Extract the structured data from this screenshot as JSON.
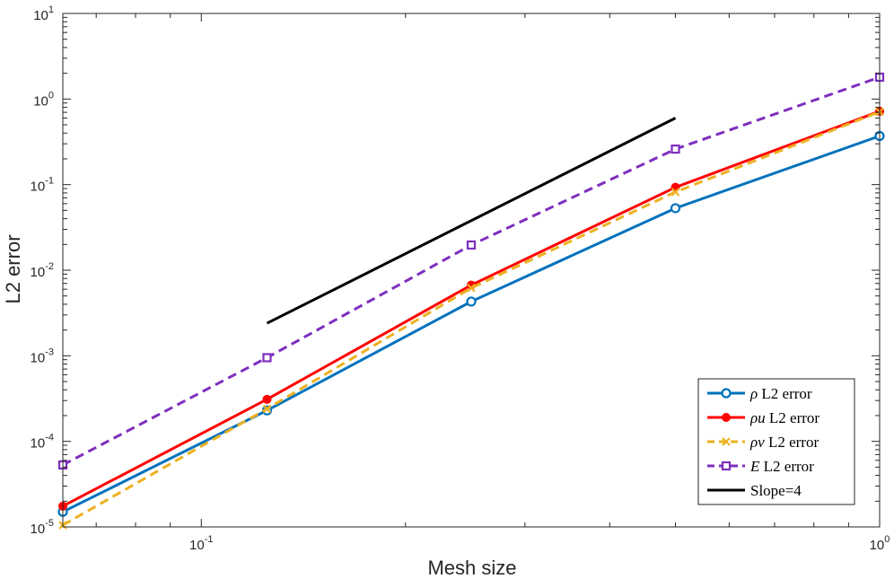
{
  "chart_data": {
    "type": "line",
    "scale": {
      "x": "log",
      "y": "log"
    },
    "xlabel": "Mesh size",
    "ylabel": "L2 error",
    "xlim": [
      0.0625,
      1
    ],
    "ylim": [
      1e-05,
      10
    ],
    "x_ticks": [
      {
        "value": 0.1,
        "base": "10",
        "exp": "-1"
      },
      {
        "value": 1,
        "base": "10",
        "exp": "0"
      }
    ],
    "y_ticks": [
      {
        "value": 1e-05,
        "base": "10",
        "exp": "-5"
      },
      {
        "value": 0.0001,
        "base": "10",
        "exp": "-4"
      },
      {
        "value": 0.001,
        "base": "10",
        "exp": "-3"
      },
      {
        "value": 0.01,
        "base": "10",
        "exp": "-2"
      },
      {
        "value": 0.1,
        "base": "10",
        "exp": "-1"
      },
      {
        "value": 1,
        "base": "10",
        "exp": "0"
      },
      {
        "value": 10,
        "base": "10",
        "exp": "1"
      }
    ],
    "grid": false,
    "legend_position": "bottom-right",
    "series": [
      {
        "name": "ρ L2 error",
        "legend_math": "ρ",
        "legend_text": " L2 error",
        "color": "#0072BD",
        "dash": "solid",
        "marker": "circle",
        "x": [
          0.0625,
          0.125,
          0.25,
          0.5,
          1
        ],
        "values": [
          1.5e-05,
          0.00023,
          0.0043,
          0.053,
          0.37
        ]
      },
      {
        "name": "ρu L2 error",
        "legend_math": "ρu",
        "legend_text": " L2 error",
        "color": "#FF0000",
        "dash": "solid",
        "marker": "dot",
        "x": [
          0.0625,
          0.125,
          0.25,
          0.5,
          1
        ],
        "values": [
          1.75e-05,
          0.00031,
          0.0067,
          0.093,
          0.72
        ]
      },
      {
        "name": "ρv L2 error",
        "legend_math": "ρv",
        "legend_text": " L2 error",
        "color": "#EDB120",
        "dash": "dashed",
        "marker": "x",
        "x": [
          0.0625,
          0.125,
          0.25,
          0.5,
          1
        ],
        "values": [
          1.05e-05,
          0.00024,
          0.0062,
          0.082,
          0.71
        ]
      },
      {
        "name": "E L2 error",
        "legend_math": "E",
        "legend_text": " L2 error",
        "color": "#7E2FBE",
        "dash": "dashed",
        "marker": "square",
        "x": [
          0.0625,
          0.125,
          0.25,
          0.5,
          1
        ],
        "values": [
          5.3e-05,
          0.00095,
          0.0197,
          0.26,
          1.8
        ]
      },
      {
        "name": "Slope=4",
        "legend_math": "",
        "legend_text": "Slope=4",
        "color": "#000000",
        "dash": "solid",
        "marker": "none",
        "x": [
          0.125,
          0.5
        ],
        "values": [
          0.0024,
          0.6
        ]
      }
    ]
  }
}
